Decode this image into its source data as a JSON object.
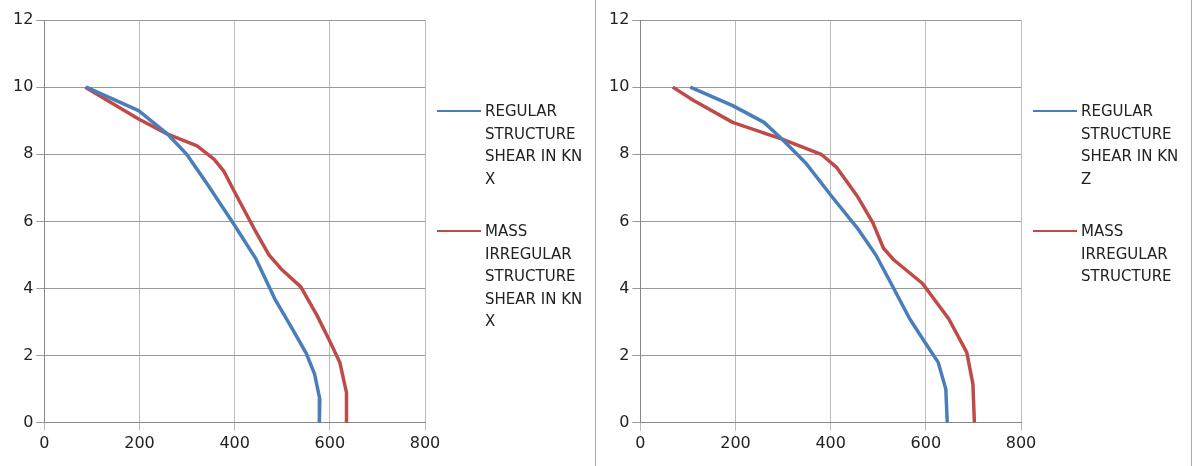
{
  "chart_data": [
    {
      "type": "line",
      "xlim": [
        0,
        800
      ],
      "xticks": [
        0,
        200,
        400,
        600,
        800
      ],
      "ylim": [
        0,
        12
      ],
      "yticks": [
        0,
        2,
        4,
        6,
        8,
        10,
        12
      ],
      "grid": true,
      "legend": "right",
      "marker": "none",
      "series": [
        {
          "name": "REGULAR STRUCTURE SHEAR IN KN X",
          "color": "#4a7ebb",
          "x": [
            88,
            198,
            259,
            299,
            343,
            399,
            444,
            484,
            523,
            551,
            568,
            579,
            578
          ],
          "values": [
            10,
            9.3,
            8.6,
            8.0,
            7.1,
            5.9,
            4.9,
            3.7,
            2.75,
            2.05,
            1.45,
            0.7,
            0
          ]
        },
        {
          "name": "MASS IRREGULAR STRUCTURE SHEAR IN KN X",
          "color": "#be4b48",
          "x": [
            86,
            198,
            259,
            321,
            357,
            377,
            399,
            444,
            472,
            500,
            539,
            573,
            601,
            621,
            635,
            635
          ],
          "values": [
            10,
            9.05,
            8.6,
            8.25,
            7.85,
            7.5,
            6.9,
            5.7,
            5.0,
            4.55,
            4.05,
            3.2,
            2.4,
            1.8,
            0.9,
            0
          ]
        }
      ]
    },
    {
      "type": "line",
      "xlim": [
        0,
        800
      ],
      "xticks": [
        0,
        200,
        400,
        600,
        800
      ],
      "ylim": [
        0,
        12
      ],
      "yticks": [
        0,
        2,
        4,
        6,
        8,
        10,
        12
      ],
      "grid": true,
      "legend": "right",
      "marker": "none",
      "series": [
        {
          "name": "REGULAR STRUCTURE SHEAR IN KN Z",
          "color": "#4a7ebb",
          "x": [
            105,
            194,
            260,
            298,
            347,
            402,
            456,
            495,
            527,
            566,
            598,
            626,
            642,
            645
          ],
          "values": [
            10,
            9.45,
            8.95,
            8.45,
            7.75,
            6.75,
            5.8,
            5.0,
            4.15,
            3.1,
            2.4,
            1.8,
            1.0,
            0
          ]
        },
        {
          "name": "MASS IRREGULAR STRUCTURE",
          "color": "#be4b48",
          "x": [
            68,
            112,
            194,
            298,
            380,
            413,
            456,
            489,
            511,
            533,
            593,
            648,
            686,
            699,
            702
          ],
          "values": [
            10,
            9.6,
            8.95,
            8.45,
            8.0,
            7.6,
            6.75,
            5.95,
            5.2,
            4.85,
            4.15,
            3.1,
            2.1,
            1.15,
            0
          ]
        }
      ]
    }
  ]
}
